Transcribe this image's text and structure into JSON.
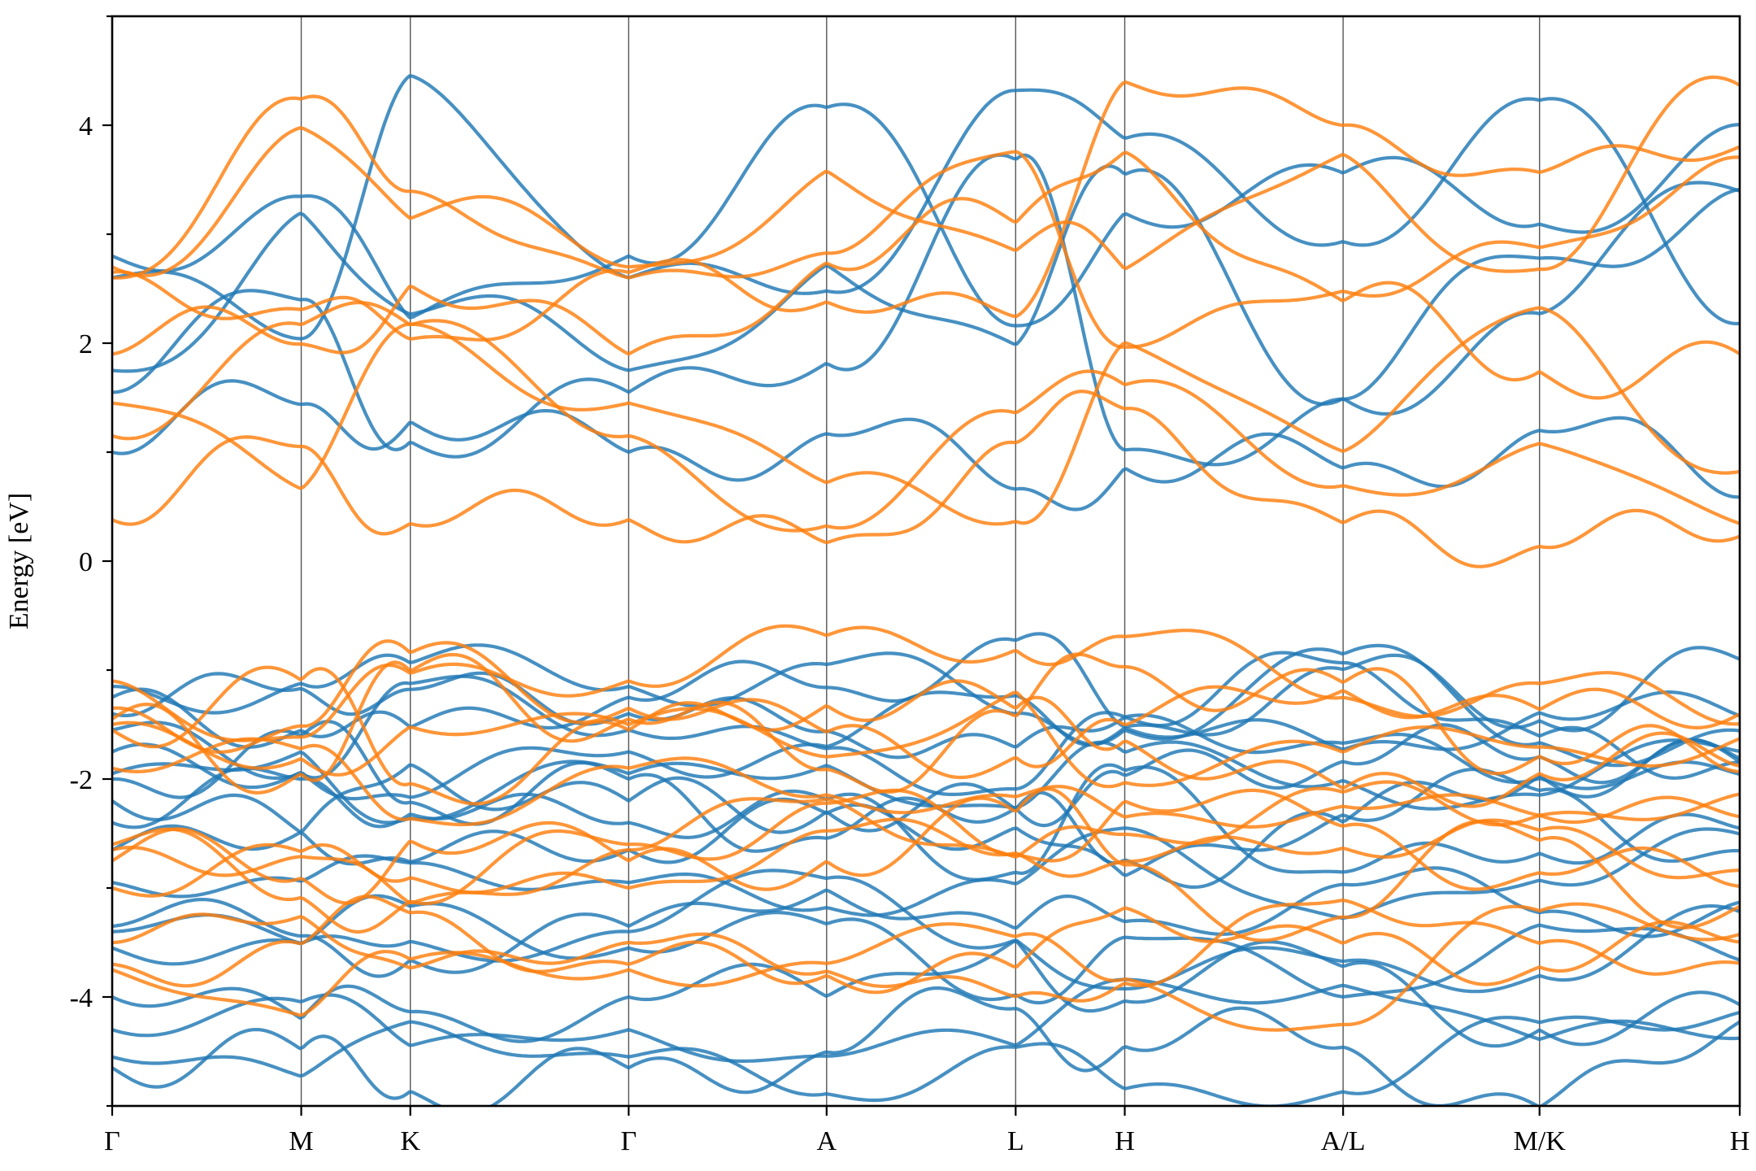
{
  "chart_data": {
    "type": "line",
    "title": "",
    "xlabel": "",
    "ylabel": "Energy [eV]",
    "ylim": [
      -5,
      5
    ],
    "yticks": [
      -4,
      -2,
      0,
      2,
      4
    ],
    "ytick_labels": [
      "-4",
      "-2",
      "0",
      "2",
      "4"
    ],
    "grid": false,
    "legend": "none",
    "kpath_labels": [
      "Γ",
      "M",
      "K",
      "Γ",
      "A",
      "L",
      "H",
      "A/L",
      "M/K",
      "H"
    ],
    "kpath_positions": [
      0.0,
      1.0,
      1.577,
      2.732,
      3.779,
      4.779,
      5.356,
      6.511,
      7.55,
      8.609
    ],
    "series_colors": [
      "#1f77b4",
      "#ff7f0e"
    ],
    "series": [
      {
        "name": "",
        "color": "#1f77b4",
        "gamma_energies": [
          -4.65,
          -4.55,
          -4.3,
          -4.0,
          -3.55,
          -3.4,
          -3.35,
          -2.95,
          -2.65,
          -2.4,
          -2.2,
          -2.0,
          -1.95,
          -1.75,
          -1.55,
          -1.4,
          -1.25,
          -1.15,
          1.0,
          1.55,
          1.75,
          2.6,
          2.8
        ]
      },
      {
        "name": "",
        "color": "#ff7f0e",
        "gamma_energies": [
          -3.75,
          -3.7,
          -3.5,
          -3.0,
          -2.75,
          -2.65,
          -2.6,
          -1.9,
          -1.55,
          -1.5,
          -1.45,
          -1.35,
          -1.1,
          0.38,
          1.15,
          1.45,
          1.9,
          2.6,
          2.65,
          2.7
        ]
      }
    ]
  }
}
